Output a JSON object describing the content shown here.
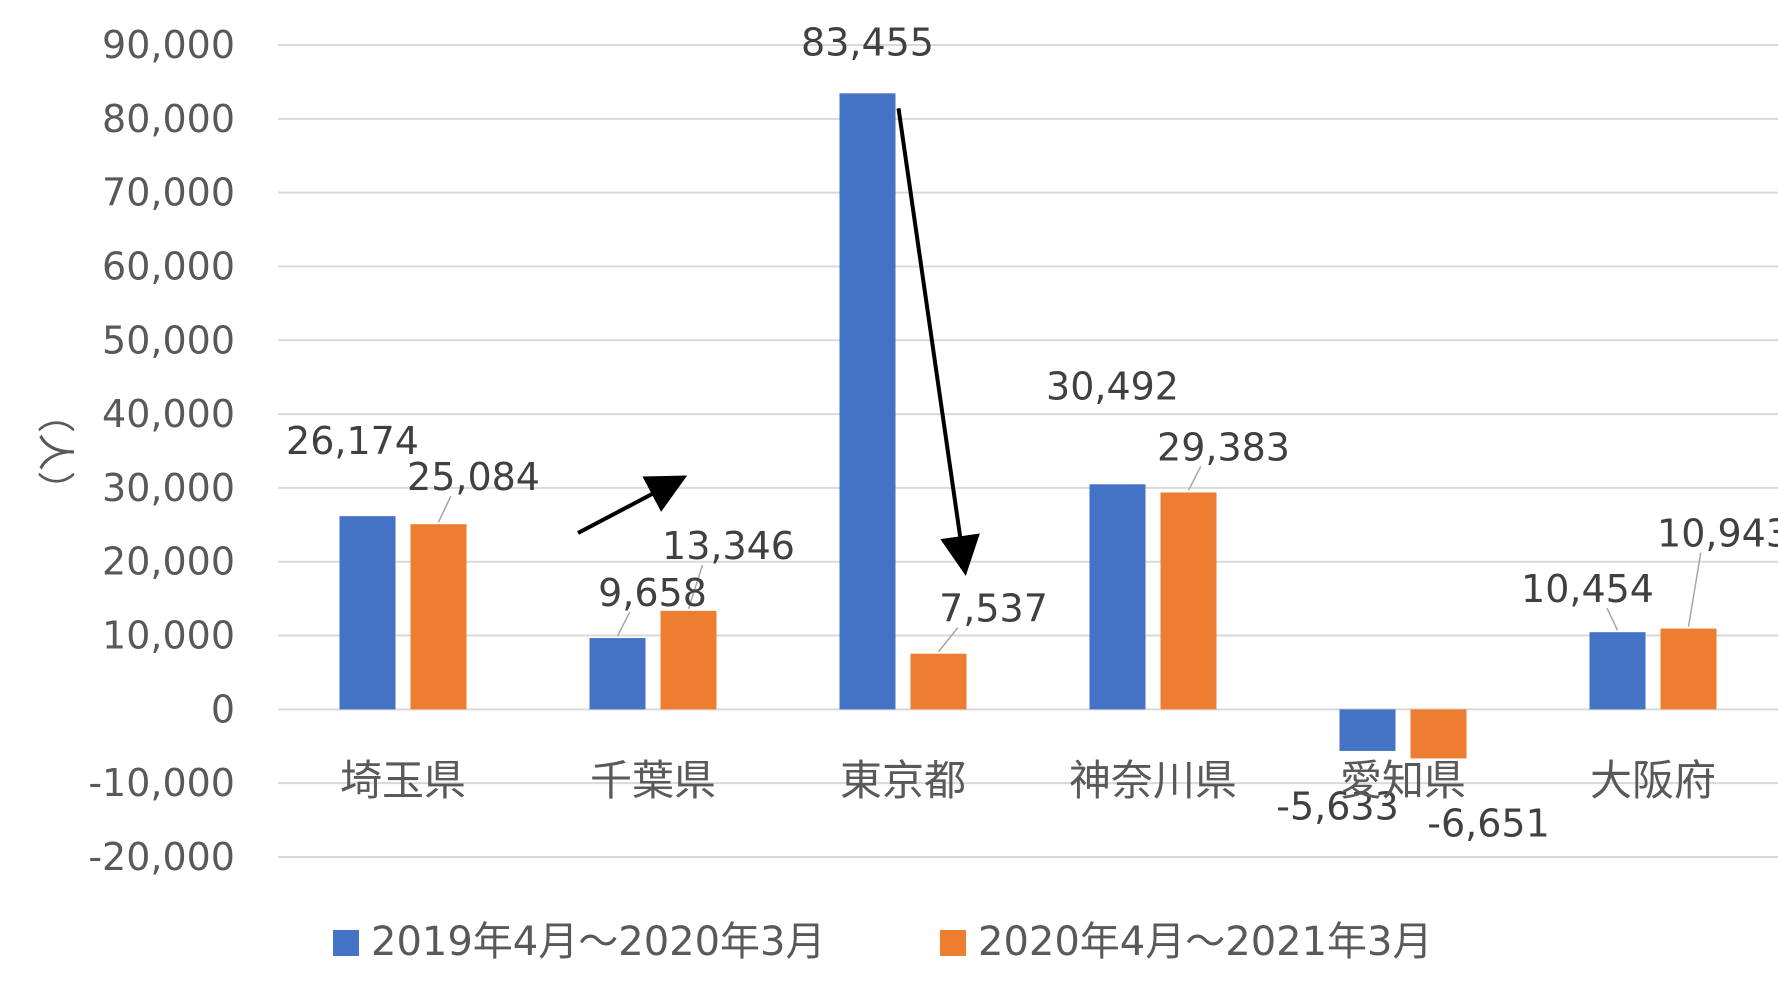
{
  "chart_data": {
    "type": "bar",
    "title": "",
    "xlabel": "",
    "ylabel": "（人）",
    "ylim": [
      -20000,
      90000
    ],
    "ytick_step": 10000,
    "grid": true,
    "legend_position": "bottom",
    "categories": [
      "埼玉県",
      "千葉県",
      "東京都",
      "神奈川県",
      "愛知県",
      "大阪府"
    ],
    "series": [
      {
        "name": "2019年4月～2020年3月",
        "color": "#4472C4",
        "values": [
          26174,
          9658,
          83455,
          30492,
          -5633,
          10454
        ],
        "labels": [
          "26,174",
          "9,658",
          "83,455",
          "30,492",
          "-5,633",
          "10,454"
        ]
      },
      {
        "name": "2020年4月～2021年3月",
        "color": "#ED7D31",
        "values": [
          25084,
          13346,
          7537,
          29383,
          -6651,
          10943
        ],
        "labels": [
          "25,084",
          "13,346",
          "7,537",
          "29,383",
          "-6,651",
          "10,943"
        ]
      }
    ],
    "ytick_labels": [
      "-20,000",
      "-10,000",
      "0",
      "10,000",
      "20,000",
      "30,000",
      "40,000",
      "50,000",
      "60,000",
      "70,000",
      "80,000",
      "90,000"
    ],
    "annotations": [
      {
        "type": "arrow",
        "meaning": "increase",
        "category": "千葉県"
      },
      {
        "type": "arrow",
        "meaning": "decrease",
        "category": "東京都"
      }
    ]
  }
}
